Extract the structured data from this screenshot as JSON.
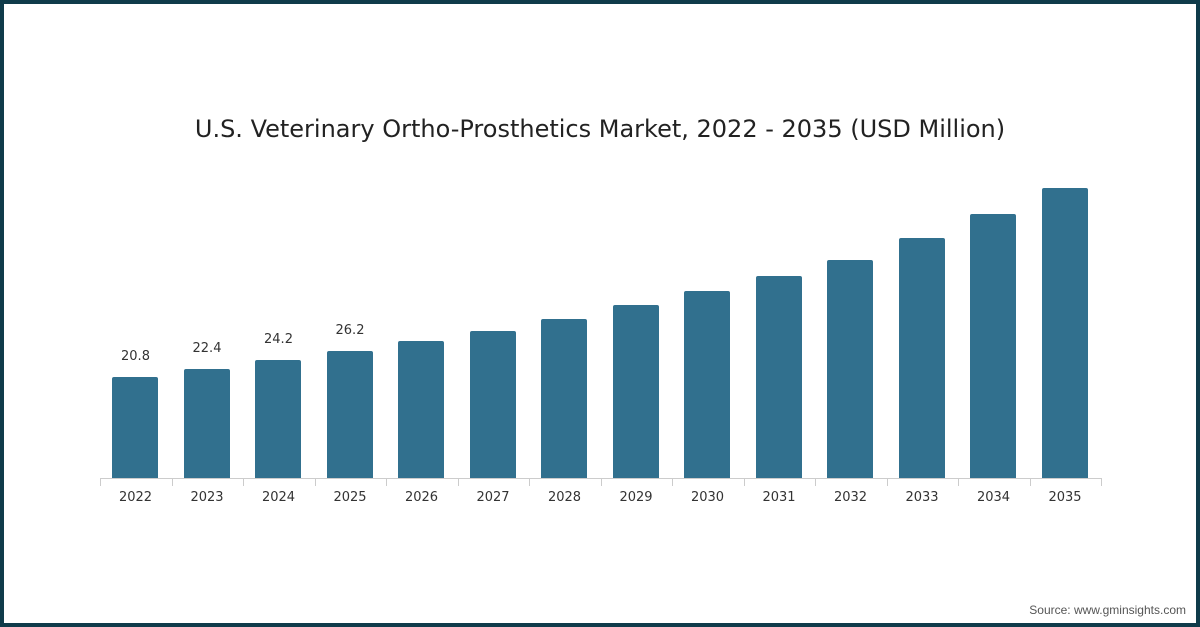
{
  "title": "U.S. Veterinary Ortho-Prosthetics Market, 2022 - 2035 (USD Million)",
  "source": "Source: www.gminsights.com",
  "colors": {
    "bar": "#31708e",
    "border": "#0f3b4a"
  },
  "chart_data": {
    "type": "bar",
    "title": "U.S. Veterinary Ortho-Prosthetics Market, 2022 - 2035 (USD Million)",
    "xlabel": "",
    "ylabel": "USD Million",
    "categories": [
      "2022",
      "2023",
      "2024",
      "2025",
      "2026",
      "2027",
      "2028",
      "2029",
      "2030",
      "2031",
      "2032",
      "2033",
      "2034",
      "2035"
    ],
    "values": [
      20.8,
      22.4,
      24.2,
      26.2,
      28.2,
      30.3,
      32.7,
      35.6,
      38.5,
      41.6,
      44.9,
      49.4,
      54.4,
      59.7
    ],
    "labeled_values": {
      "2022": "20.8",
      "2023": "22.4",
      "2024": "24.2",
      "2025": "26.2"
    },
    "grid": false,
    "legend": null
  }
}
